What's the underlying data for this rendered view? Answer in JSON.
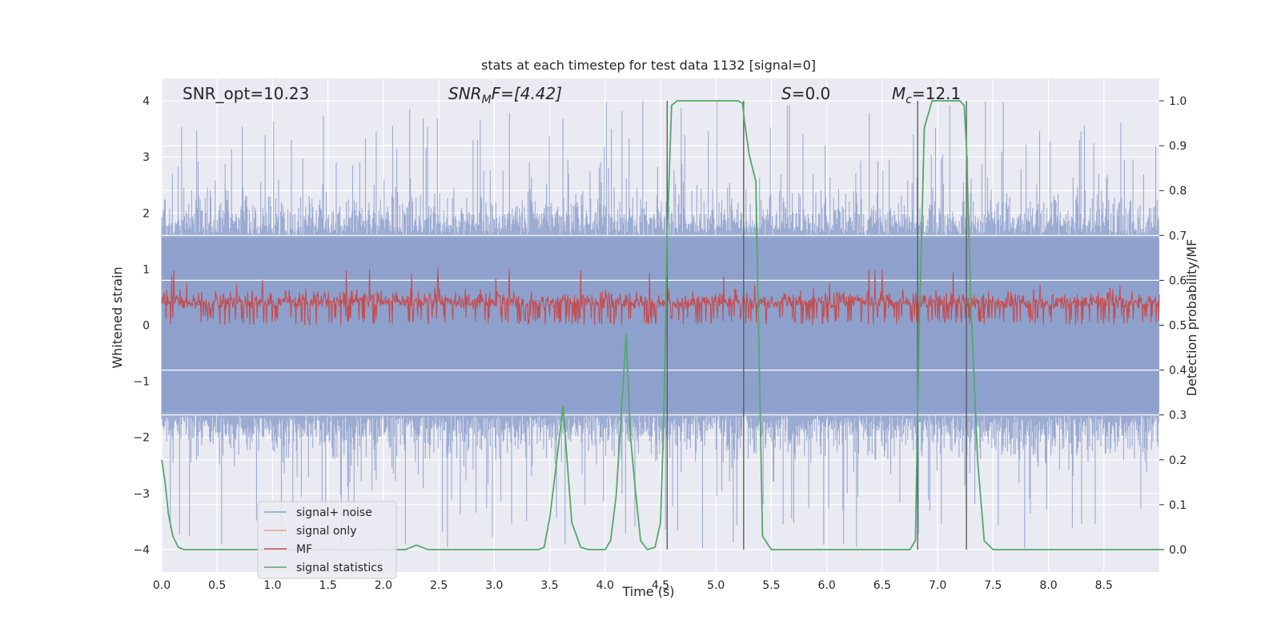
{
  "chart_data": {
    "type": "line",
    "title": "stats at each timestep for test data 1132 [signal=0]",
    "xlabel": "Time (s)",
    "ylabel": "Whitened strain",
    "ylabel_right": "Detection probability/MF",
    "xlim": [
      0.0,
      9.0
    ],
    "ylim": [
      -4.4,
      4.4
    ],
    "ylim_right": [
      -0.05,
      1.05
    ],
    "x_ticks": [
      "0.0",
      "0.5",
      "1.0",
      "1.5",
      "2.0",
      "2.5",
      "3.0",
      "3.5",
      "4.0",
      "4.5",
      "5.0",
      "5.5",
      "6.0",
      "6.5",
      "7.0",
      "7.5",
      "8.0",
      "8.5"
    ],
    "y_ticks": [
      "4",
      "3",
      "2",
      "1",
      "0",
      "−1",
      "−2",
      "−3",
      "−4"
    ],
    "y_ticks_right": [
      "1.0",
      "0.9",
      "0.8",
      "0.7",
      "0.6",
      "0.5",
      "0.4",
      "0.3",
      "0.2",
      "0.1",
      "0.0"
    ],
    "grid": true,
    "legend_position": "lower-left",
    "annotations": {
      "snr_opt": "SNR_opt=10.23",
      "snr_mf_main": "SNR",
      "snr_mf_sub": "M",
      "snr_mf_rest": "F=[4.42]",
      "s_var": "S",
      "s_rest": "=0.0",
      "mc_main": "M",
      "mc_sub": "c",
      "mc_rest": "=12.1"
    },
    "series": [
      {
        "name": "signal+ noise",
        "color": "#8da0cb",
        "description_level": "noise band roughly within ±2.3, spikes up to about ±4"
      },
      {
        "name": "signal only",
        "color": "#e8a48a",
        "values": []
      },
      {
        "name": "MF",
        "color": "#c44e52",
        "range": [
          0.0,
          1.0
        ]
      },
      {
        "name": "signal statistics",
        "color": "#55a868",
        "axis": "right",
        "x": [
          0.0,
          0.03,
          0.06,
          0.1,
          0.15,
          0.2,
          0.3,
          0.5,
          1.0,
          1.5,
          2.0,
          2.2,
          2.3,
          2.4,
          2.5,
          3.0,
          3.4,
          3.45,
          3.5,
          3.55,
          3.62,
          3.7,
          3.78,
          3.85,
          4.0,
          4.05,
          4.1,
          4.14,
          4.19,
          4.23,
          4.27,
          4.32,
          4.38,
          4.45,
          4.5,
          4.53,
          4.56,
          4.6,
          4.65,
          4.75,
          5.0,
          5.2,
          5.24,
          5.26,
          5.3,
          5.36,
          5.42,
          5.5,
          6.0,
          6.05,
          6.5,
          6.75,
          6.8,
          6.83,
          6.88,
          6.95,
          7.1,
          7.2,
          7.24,
          7.26,
          7.3,
          7.36,
          7.42,
          7.5,
          8.0,
          8.5,
          8.85,
          9.0
        ],
        "values": [
          0.2,
          0.15,
          0.08,
          0.03,
          0.005,
          0.0,
          0.0,
          0.0,
          0.0,
          0.0,
          0.0,
          0.0,
          0.01,
          0.0,
          0.0,
          0.0,
          0.0,
          0.005,
          0.07,
          0.17,
          0.32,
          0.06,
          0.005,
          0.0,
          0.0,
          0.02,
          0.12,
          0.28,
          0.48,
          0.25,
          0.14,
          0.02,
          0.0,
          0.005,
          0.06,
          0.3,
          0.7,
          0.99,
          1.0,
          1.0,
          1.0,
          1.0,
          0.995,
          0.95,
          0.88,
          0.82,
          0.03,
          0.0,
          0.0,
          0.0,
          0.0,
          0.0,
          0.02,
          0.45,
          0.94,
          1.0,
          1.0,
          1.0,
          0.99,
          0.9,
          0.55,
          0.2,
          0.02,
          0.0,
          0.0,
          0.0,
          0.0,
          0.0
        ]
      }
    ],
    "vertical_markers": [
      4.56,
      5.25,
      6.82,
      7.26
    ],
    "colors": {
      "background": "#eaeaf2",
      "grid": "#ffffff",
      "marker_lines": "#555555"
    }
  }
}
